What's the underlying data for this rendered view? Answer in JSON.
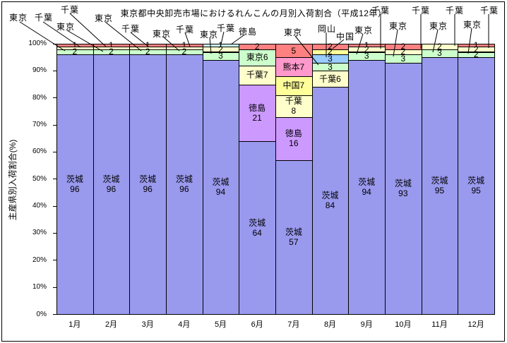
{
  "chart_data": {
    "type": "bar",
    "subtype": "stacked-100-percent-column",
    "title": "東京都中央卸売市場におけるれんこんの月別入荷割合（平成12年）",
    "ylabel": "主産県別入荷割合(%)",
    "xlabel": "",
    "ylim": [
      0,
      100
    ],
    "grid": false,
    "legend": "none (segments labeled by callouts and in-bar text)",
    "y_ticks": [
      "100%",
      "90%",
      "80%",
      "70%",
      "60%",
      "50%",
      "40%",
      "30%",
      "20%",
      "10%",
      "0%"
    ],
    "categories": [
      "1月",
      "2月",
      "3月",
      "4月",
      "5月",
      "6月",
      "7月",
      "8月",
      "9月",
      "10月",
      "11月",
      "12月"
    ],
    "colors": {
      "ibaraki": "#9999ee",
      "tokyo": "#ccffcc",
      "chiba": "#ffffcc",
      "other": "#ff8080",
      "tokushima": "#cc99ff",
      "tokushima_cyan": "#ccffff",
      "kumamoto": "#ff99cc",
      "china": "#ffff99",
      "okayama": "#99ccff",
      "border": "#000000"
    },
    "color_names": {
      "ibaraki": "茨城",
      "tokyo": "東京",
      "chiba": "千葉",
      "tokushima": "徳島",
      "tokushima_cyan": "徳島",
      "kumamoto": "熊本",
      "china": "中国",
      "okayama": "岡山",
      "other": ""
    },
    "months": [
      {
        "month": "1月",
        "segments": [
          {
            "name": "",
            "color": "other",
            "value": 1,
            "label": "1"
          },
          {
            "name": "千葉",
            "color": "chiba",
            "value": 1,
            "label": ""
          },
          {
            "name": "東京",
            "color": "tokyo",
            "value": 2,
            "label": "2"
          },
          {
            "name": "茨城",
            "color": "ibaraki",
            "value": 96,
            "label": "茨城|96"
          }
        ]
      },
      {
        "month": "2月",
        "segments": [
          {
            "name": "",
            "color": "other",
            "value": 1,
            "label": "1"
          },
          {
            "name": "千葉",
            "color": "chiba",
            "value": 1,
            "label": ""
          },
          {
            "name": "東京",
            "color": "tokyo",
            "value": 2,
            "label": "2"
          },
          {
            "name": "茨城",
            "color": "ibaraki",
            "value": 96,
            "label": "茨城|96"
          }
        ]
      },
      {
        "month": "3月",
        "segments": [
          {
            "name": "",
            "color": "other",
            "value": 1,
            "label": "1"
          },
          {
            "name": "千葉",
            "color": "chiba",
            "value": 1,
            "label": ""
          },
          {
            "name": "東京",
            "color": "tokyo",
            "value": 2,
            "label": "2"
          },
          {
            "name": "茨城",
            "color": "ibaraki",
            "value": 96,
            "label": "茨城|96"
          }
        ]
      },
      {
        "month": "4月",
        "segments": [
          {
            "name": "",
            "color": "other",
            "value": 1,
            "label": "1"
          },
          {
            "name": "千葉",
            "color": "chiba",
            "value": 1,
            "label": ""
          },
          {
            "name": "東京",
            "color": "tokyo",
            "value": 2,
            "label": "2"
          },
          {
            "name": "茨城",
            "color": "ibaraki",
            "value": 96,
            "label": "茨城|96"
          }
        ]
      },
      {
        "month": "5月",
        "segments": [
          {
            "name": "徳島",
            "color": "tokushima_cyan",
            "value": 1,
            "label": "1"
          },
          {
            "name": "千葉",
            "color": "chiba",
            "value": 2,
            "label": "2"
          },
          {
            "name": "東京",
            "color": "tokyo",
            "value": 3,
            "label": "3"
          },
          {
            "name": "茨城",
            "color": "ibaraki",
            "value": 94,
            "label": "茨城|94"
          }
        ]
      },
      {
        "month": "6月",
        "segments": [
          {
            "name": "",
            "color": "other",
            "value": 2,
            "label": "2"
          },
          {
            "name": "東京",
            "color": "tokyo",
            "value": 6,
            "label": "東京6"
          },
          {
            "name": "千葉",
            "color": "chiba",
            "value": 7,
            "label": "千葉7"
          },
          {
            "name": "徳島",
            "color": "tokushima",
            "value": 21,
            "label": "徳島|21"
          },
          {
            "name": "茨城",
            "color": "ibaraki",
            "value": 64,
            "label": "茨城|64"
          }
        ]
      },
      {
        "month": "7月",
        "segments": [
          {
            "name": "",
            "color": "other",
            "value": 5,
            "label": "5"
          },
          {
            "name": "熊本",
            "color": "kumamoto",
            "value": 7,
            "label": "熊本7"
          },
          {
            "name": "中国",
            "color": "china",
            "value": 7,
            "label": "中国7"
          },
          {
            "name": "千葉",
            "color": "chiba",
            "value": 8,
            "label": "千葉|8"
          },
          {
            "name": "徳島",
            "color": "tokushima",
            "value": 16,
            "label": "徳島|16"
          },
          {
            "name": "茨城",
            "color": "ibaraki",
            "value": 57,
            "label": "茨城|57"
          }
        ]
      },
      {
        "month": "8月",
        "segments": [
          {
            "name": "",
            "color": "other",
            "value": 2,
            "label": "2"
          },
          {
            "name": "中国",
            "color": "china",
            "value": 2,
            "label": "2"
          },
          {
            "name": "岡山",
            "color": "okayama",
            "value": 3,
            "label": "3"
          },
          {
            "name": "東京",
            "color": "tokyo",
            "value": 3,
            "label": "3"
          },
          {
            "name": "千葉",
            "color": "chiba",
            "value": 6,
            "label": "千葉6"
          },
          {
            "name": "茨城",
            "color": "ibaraki",
            "value": 84,
            "label": "茨城|84"
          }
        ]
      },
      {
        "month": "9月",
        "segments": [
          {
            "name": "",
            "color": "other",
            "value": 1,
            "label": "1"
          },
          {
            "name": "千葉",
            "color": "chiba",
            "value": 2,
            "label": "2"
          },
          {
            "name": "東京",
            "color": "tokyo",
            "value": 3,
            "label": "3"
          },
          {
            "name": "茨城",
            "color": "ibaraki",
            "value": 94,
            "label": "茨城|94"
          }
        ]
      },
      {
        "month": "10月",
        "segments": [
          {
            "name": "",
            "color": "other",
            "value": 2,
            "label": "2"
          },
          {
            "name": "千葉",
            "color": "chiba",
            "value": 2,
            "label": "2"
          },
          {
            "name": "東京",
            "color": "tokyo",
            "value": 3,
            "label": "3"
          },
          {
            "name": "茨城",
            "color": "ibaraki",
            "value": 93,
            "label": "茨城|93"
          }
        ]
      },
      {
        "month": "11月",
        "segments": [
          {
            "name": "千葉",
            "color": "chiba",
            "value": 2,
            "label": "2"
          },
          {
            "name": "東京",
            "color": "tokyo",
            "value": 3,
            "label": "3"
          },
          {
            "name": "茨城",
            "color": "ibaraki",
            "value": 95,
            "label": "茨城|95"
          }
        ]
      },
      {
        "month": "12月",
        "segments": [
          {
            "name": "",
            "color": "other",
            "value": 1,
            "label": "1"
          },
          {
            "name": "千葉",
            "color": "chiba",
            "value": 2,
            "label": "2"
          },
          {
            "name": "東京",
            "color": "tokyo",
            "value": 2,
            "label": "2"
          },
          {
            "name": "茨城",
            "color": "ibaraki",
            "value": 95,
            "label": "茨城|95"
          }
        ]
      }
    ],
    "annotations": [
      {
        "text": "東京",
        "x": 13,
        "y": 16,
        "line": [
          28,
          31,
          92,
          72
        ]
      },
      {
        "text": "千葉",
        "x": 49,
        "y": 16,
        "line": [
          61,
          31,
          114,
          67
        ]
      },
      {
        "text": "千葉",
        "x": 86,
        "y": 5,
        "line": [
          99,
          19,
          150,
          66
        ]
      },
      {
        "text": "東京",
        "x": 80,
        "y": 29,
        "line": [
          95,
          43,
          146,
          73
        ]
      },
      {
        "text": "東京",
        "x": 134,
        "y": 17,
        "line": [
          149,
          31,
          200,
          72
        ]
      },
      {
        "text": "千葉",
        "x": 172,
        "y": 32,
        "line": [
          185,
          46,
          210,
          66
        ]
      },
      {
        "text": "東京",
        "x": 216,
        "y": 39,
        "line": [
          231,
          52,
          254,
          72
        ]
      },
      {
        "text": "千葉",
        "x": 249,
        "y": 33,
        "line": [
          262,
          46,
          269,
          66
        ]
      },
      {
        "text": "東京",
        "x": 283,
        "y": 40,
        "line": [
          297,
          53,
          299,
          76
        ]
      },
      {
        "text": "千葉",
        "x": 307,
        "y": 31,
        "line": [
          317,
          45,
          312,
          67
        ]
      },
      {
        "text": "徳島",
        "x": 338,
        "y": 36,
        "line": [
          345,
          50,
          327,
          63
        ]
      },
      {
        "text": "東京",
        "x": 402,
        "y": 37,
        "line": [
          418,
          51,
          451,
          92
        ]
      },
      {
        "text": "岡山",
        "x": 450,
        "y": 32,
        "line": [
          462,
          46,
          462,
          81
        ]
      },
      {
        "text": "中国",
        "x": 476,
        "y": 43,
        "line": [
          487,
          56,
          471,
          69
        ]
      },
      {
        "text": "東京",
        "x": 502,
        "y": 34,
        "line": [
          514,
          48,
          505,
          77
        ]
      },
      {
        "text": "千葉",
        "x": 526,
        "y": 6,
        "line": [
          539,
          20,
          539,
          69
        ]
      },
      {
        "text": "東京",
        "x": 551,
        "y": 28,
        "line": [
          563,
          42,
          557,
          80
        ]
      },
      {
        "text": "千葉",
        "x": 583,
        "y": 6,
        "line": [
          596,
          20,
          596,
          69
        ]
      },
      {
        "text": "東京",
        "x": 608,
        "y": 28,
        "line": [
          620,
          42,
          613,
          74
        ]
      },
      {
        "text": "千葉",
        "x": 631,
        "y": 6,
        "line": [
          644,
          20,
          644,
          65
        ]
      },
      {
        "text": "東京",
        "x": 656,
        "y": 26,
        "line": [
          668,
          40,
          663,
          76
        ]
      },
      {
        "text": "千葉",
        "x": 680,
        "y": 6,
        "line": [
          692,
          20,
          692,
          68
        ]
      }
    ]
  }
}
